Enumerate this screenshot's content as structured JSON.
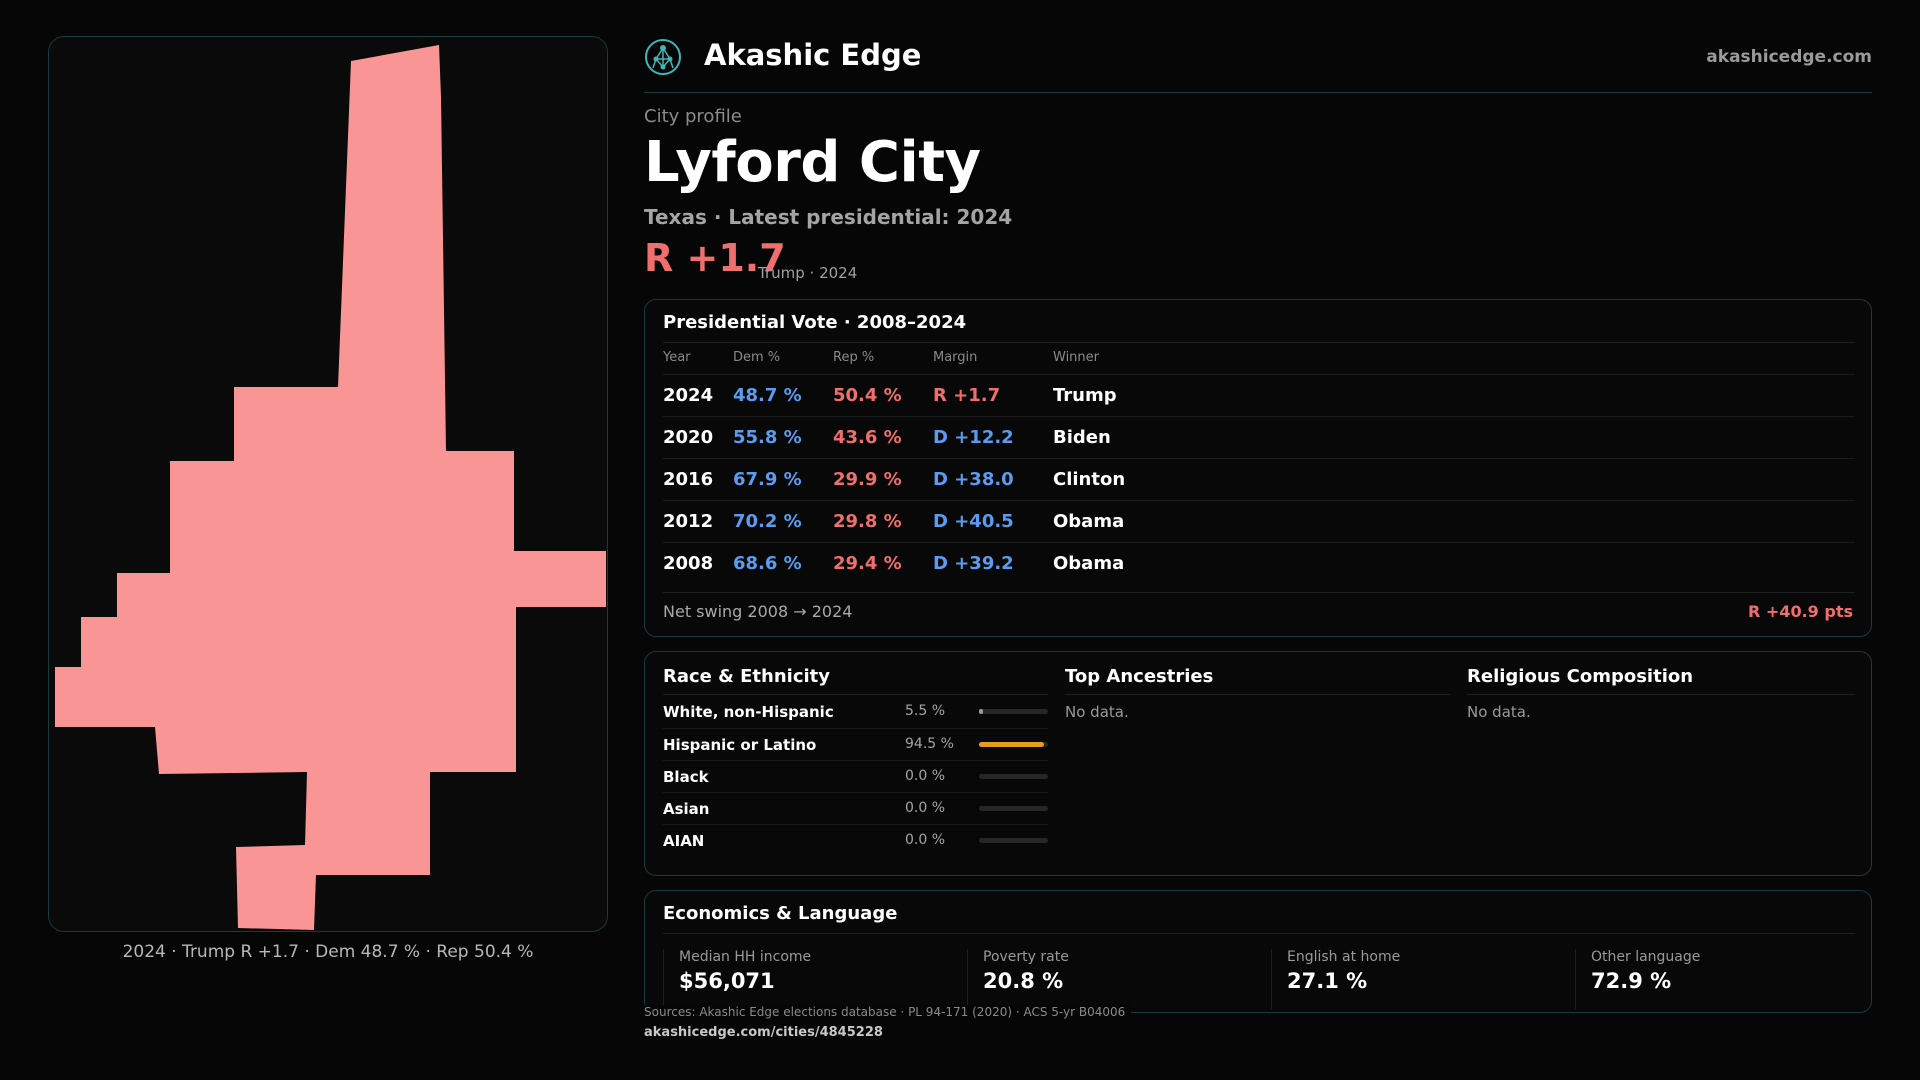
{
  "map": {
    "caption": "2024 · Trump R +1.7 · Dem 48.7 % · Rep 50.4 %",
    "fill_color": "#f99595"
  },
  "header": {
    "brand": "Akashic Edge",
    "site": "akashicedge.com",
    "logo_icon": "network-tree-icon"
  },
  "profile": {
    "eyebrow": "City profile",
    "city": "Lyford City",
    "subline": "Texas · Latest presidential: 2024",
    "margin": "R +1.7",
    "margin_note": "Trump · 2024"
  },
  "vote": {
    "title": "Presidential Vote · 2008–2024",
    "headers": {
      "year": "Year",
      "dem": "Dem %",
      "rep": "Rep %",
      "margin": "Margin",
      "winner": "Winner"
    },
    "rows": [
      {
        "year": "2024",
        "dem": "48.7 %",
        "rep": "50.4 %",
        "margin": "R +1.7",
        "winner": "Trump"
      },
      {
        "year": "2020",
        "dem": "55.8 %",
        "rep": "43.6 %",
        "margin": "D +12.2",
        "winner": "Biden"
      },
      {
        "year": "2016",
        "dem": "67.9 %",
        "rep": "29.9 %",
        "margin": "D +38.0",
        "winner": "Clinton"
      },
      {
        "year": "2012",
        "dem": "70.2 %",
        "rep": "29.8 %",
        "margin": "D +40.5",
        "winner": "Obama"
      },
      {
        "year": "2008",
        "dem": "68.6 %",
        "rep": "29.4 %",
        "margin": "D +39.2",
        "winner": "Obama"
      }
    ],
    "swing_label": "Net swing 2008 → 2024",
    "swing_value": "R +40.9 pts"
  },
  "race": {
    "title": "Race & Ethnicity",
    "rows": [
      {
        "label": "White, non-Hispanic",
        "pct": "5.5 %",
        "fraction": 0.055
      },
      {
        "label": "Hispanic or Latino",
        "pct": "94.5 %",
        "fraction": 0.945
      },
      {
        "label": "Black",
        "pct": "0.0 %",
        "fraction": 0
      },
      {
        "label": "Asian",
        "pct": "0.0 %",
        "fraction": 0
      },
      {
        "label": "AIAN",
        "pct": "0.0 %",
        "fraction": 0
      }
    ]
  },
  "ancestries": {
    "title": "Top Ancestries",
    "empty": "No data."
  },
  "religion": {
    "title": "Religious Composition",
    "empty": "No data."
  },
  "economics": {
    "title": "Economics & Language",
    "stats": [
      {
        "label": "Median HH income",
        "value": "$56,071"
      },
      {
        "label": "Poverty rate",
        "value": "20.8 %"
      },
      {
        "label": "English at home",
        "value": "27.1 %"
      },
      {
        "label": "Other language",
        "value": "72.9 %"
      }
    ]
  },
  "footer": {
    "sources": "Sources: Akashic Edge elections database · PL 94-171 (2020) · ACS 5-yr B04006",
    "url": "akashicedge.com/cities/4845228"
  },
  "colors": {
    "rep": "#ef6f6f",
    "dem": "#5b9cf0",
    "accent": "#e69b24"
  }
}
